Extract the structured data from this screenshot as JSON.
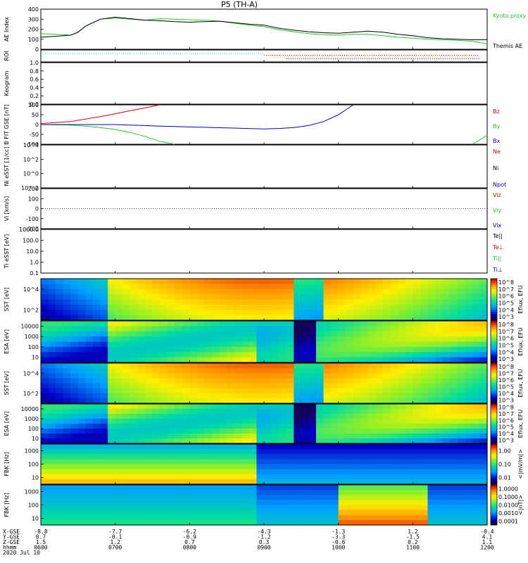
{
  "title": "P5 (TH-A)",
  "footer": {
    "row_labels": [
      "X-GSE",
      "Y-GSE",
      "Z-GSE",
      "hhmm",
      "2020 Jul 10"
    ],
    "columns": [
      {
        "x": "-8.8",
        "y": "0.7",
        "z": "1.5",
        "t": "0600"
      },
      {
        "x": "-7.7",
        "y": "-0.1",
        "z": "1.2",
        "t": "0700"
      },
      {
        "x": "-6.2",
        "y": "-0.9",
        "z": "0.7",
        "t": "0800"
      },
      {
        "x": "-4.3",
        "y": "-1.2",
        "z": "0.3",
        "t": "0900"
      },
      {
        "x": "-1.3",
        "y": "-3.3",
        "z": "-0.6",
        "t": "1000"
      },
      {
        "x": "1.2",
        "y": "-1.5",
        "z": "0.2",
        "t": "1100"
      },
      {
        "x": "-0.4",
        "y": "4.1",
        "z": "1.1",
        "t": "1200"
      }
    ]
  },
  "colors": {
    "red": "#dd0000",
    "green": "#22cc22",
    "blue": "#0000cc",
    "black": "#000000"
  },
  "chart_data": [
    {
      "type": "line",
      "ylabel": "AE Index",
      "yticks": [
        "0",
        "100",
        "200",
        "300",
        "400"
      ],
      "ylim": [
        0,
        400
      ],
      "x": [
        600,
        620,
        640,
        650,
        660,
        680,
        700,
        720,
        740,
        760,
        780,
        800,
        820,
        840,
        860,
        880,
        900,
        920,
        940,
        960,
        980,
        1000,
        1020,
        1040,
        1060,
        1080,
        1100,
        1120,
        1140,
        1160,
        1180,
        1200
      ],
      "series": [
        {
          "name": "Kyoto proxy AE",
          "color": "green",
          "values": [
            155,
            150,
            140,
            170,
            230,
            300,
            310,
            300,
            290,
            305,
            300,
            295,
            290,
            280,
            260,
            240,
            225,
            195,
            175,
            155,
            145,
            140,
            150,
            150,
            135,
            120,
            110,
            100,
            95,
            90,
            80,
            55
          ]
        },
        {
          "name": "Themis AE",
          "color": "black",
          "values": [
            120,
            130,
            140,
            170,
            230,
            300,
            320,
            305,
            290,
            285,
            275,
            270,
            275,
            280,
            265,
            250,
            240,
            210,
            190,
            175,
            165,
            160,
            170,
            180,
            170,
            150,
            135,
            115,
            105,
            100,
            95,
            95
          ]
        }
      ],
      "legend": [
        "Kyoto proxy AE",
        "Themis AE"
      ]
    },
    {
      "type": "line",
      "ylabel": "ROI",
      "note": "dotted region-of-interest bars",
      "series": [
        {
          "name": "",
          "color": "cyan",
          "values": [
            [
              600,
              900
            ]
          ]
        },
        {
          "name": "",
          "color": "red",
          "values": [
            [
              900,
              1190
            ]
          ]
        },
        {
          "name": "",
          "color": "orange",
          "values": [
            [
              910,
              1190
            ]
          ]
        },
        {
          "name": "",
          "color": "blue",
          "values": [
            [
              930,
              1190
            ]
          ]
        }
      ]
    },
    {
      "type": "line",
      "ylabel": "Keogram",
      "yticks": [
        "0.0",
        "0.2",
        "0.4",
        "0.6",
        "0.8",
        "1.0"
      ],
      "ylim": [
        0,
        1
      ]
    },
    {
      "type": "line",
      "ylabel": "B FIT GSE [nT]",
      "yticks": [
        "-100",
        "-50",
        "0",
        "50",
        "100"
      ],
      "ylim": [
        -100,
        100
      ],
      "x": [
        600,
        640,
        660,
        680,
        700,
        720,
        740,
        760,
        780,
        800,
        820,
        840,
        860,
        880,
        900,
        920,
        940,
        960,
        980,
        1000,
        1020,
        1040,
        1060,
        1080,
        1100,
        1120,
        1140,
        1160,
        1180,
        1200
      ],
      "series": [
        {
          "name": "Bz",
          "color": "red",
          "values": [
            5,
            15,
            28,
            40,
            55,
            70,
            85,
            100,
            null,
            null,
            null,
            null,
            null,
            null,
            null,
            null,
            null,
            null,
            null,
            null,
            null,
            null,
            null,
            null,
            null,
            null,
            null,
            null,
            null,
            null
          ]
        },
        {
          "name": "By",
          "color": "green",
          "values": [
            0,
            -3,
            -8,
            -15,
            -25,
            -40,
            -60,
            -85,
            -100,
            null,
            null,
            null,
            null,
            null,
            null,
            null,
            null,
            null,
            null,
            null,
            null,
            null,
            null,
            null,
            null,
            null,
            null,
            null,
            -100,
            -55
          ]
        },
        {
          "name": "Bx",
          "color": "blue",
          "values": [
            0,
            0,
            0,
            0,
            0,
            -3,
            -5,
            -8,
            -10,
            -12,
            -14,
            -16,
            -18,
            -20,
            -22,
            -20,
            -15,
            -5,
            15,
            50,
            100,
            null,
            null,
            null,
            null,
            null,
            null,
            null,
            null,
            null
          ]
        }
      ],
      "legend": [
        "Bz",
        "By",
        "Bx"
      ]
    },
    {
      "type": "line",
      "ylabel": "Ni eSST [1/cc]",
      "yticks": [
        "10^-2",
        "10^0",
        "10^2",
        "10^4"
      ],
      "ylim_log10": [
        -3,
        5
      ],
      "series": [
        {
          "name": "Ne",
          "color": "red"
        },
        {
          "name": "Ni",
          "color": "black"
        },
        {
          "name": "Npot",
          "color": "blue"
        }
      ],
      "legend": [
        "Ne",
        "Ni",
        "Npot"
      ]
    },
    {
      "type": "line",
      "ylabel": "Vi [km/s]",
      "yticks": [
        "-200",
        "-100",
        "0",
        "100",
        "200"
      ],
      "ylim": [
        -250,
        250
      ],
      "series": [
        {
          "name": "Viz",
          "color": "red"
        },
        {
          "name": "Viy",
          "color": "green"
        },
        {
          "name": "Vix",
          "color": "blue"
        }
      ],
      "legend": [
        "Viz",
        "Viy",
        "Vix"
      ]
    },
    {
      "type": "line",
      "ylabel": "Ti eSST [eV]",
      "yticks": [
        "0.1",
        "1.0",
        "10.0",
        "100.0",
        "1000.0"
      ],
      "ylim_log10": [
        -1,
        4
      ],
      "series": [
        {
          "name": "Te||",
          "color": "black"
        },
        {
          "name": "Te⊥",
          "color": "red"
        },
        {
          "name": "Ti||",
          "color": "green"
        },
        {
          "name": "Ti⊥",
          "color": "blue"
        }
      ],
      "legend": [
        "Te||",
        "Te⊥",
        "Ti||",
        "Ti⊥"
      ]
    },
    {
      "type": "heatmap",
      "ylabel": "SST [eV]",
      "yticks": [
        "10^2",
        "10^4"
      ],
      "cbar": [
        "10^3",
        "10^4",
        "10^5",
        "10^6",
        "10^7",
        "10^8"
      ],
      "cbar_label": "Eflux, EFU"
    },
    {
      "type": "heatmap",
      "ylabel": "ESA [eV]",
      "yticks": [
        "10",
        "100",
        "1000",
        "10000"
      ],
      "cbar": [
        "10^3",
        "10^4",
        "10^5",
        "10^6",
        "10^7",
        "10^8"
      ],
      "cbar_label": "Eflux, EFU"
    },
    {
      "type": "heatmap",
      "ylabel": "SST [eV]",
      "yticks": [
        "10^2",
        "10^4"
      ],
      "cbar": [
        "10^3",
        "10^4",
        "10^5",
        "10^6",
        "10^7",
        "10^8"
      ],
      "cbar_label": "Eflux, EFU"
    },
    {
      "type": "heatmap",
      "ylabel": "ESA [eV]",
      "yticks": [
        "10",
        "100",
        "1000",
        "10000"
      ],
      "cbar": [
        "10^3",
        "10^4",
        "10^5",
        "10^6",
        "10^7",
        "10^8"
      ],
      "cbar_label": "Eflux, EFU"
    },
    {
      "type": "heatmap",
      "ylabel": "FBK [Hz]",
      "yticks": [
        "10",
        "100",
        "1000"
      ],
      "cbar": [
        "0.01",
        "0.10",
        "1.00"
      ],
      "cbar_label": "<|mV/m|>"
    },
    {
      "type": "heatmap",
      "ylabel": "FBK [Hz]",
      "yticks": [
        "10",
        "100",
        "1000"
      ],
      "cbar": [
        "0.0001",
        "0.0010",
        "0.0100",
        "0.1000",
        "1.0000"
      ],
      "cbar_label": "<|nT|>"
    }
  ]
}
